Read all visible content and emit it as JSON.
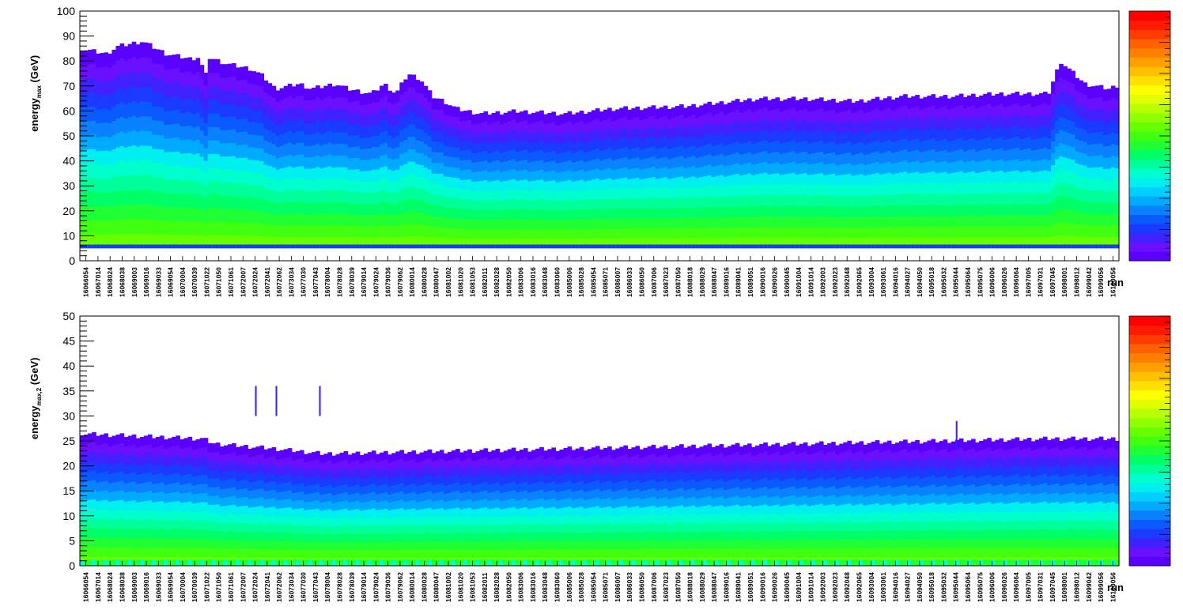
{
  "palette": [
    "#5a00ff",
    "#6a10ff",
    "#4020ff",
    "#1a3aff",
    "#0a5aff",
    "#0a82ff",
    "#00aaff",
    "#00cfff",
    "#00f0f0",
    "#00ffcc",
    "#00ff99",
    "#00ff66",
    "#20ff33",
    "#40ff10",
    "#66ff00",
    "#90ff00",
    "#b8ff00",
    "#e0ff00",
    "#ffff00",
    "#ffe000",
    "#ffc000",
    "#ffa000",
    "#ff8000",
    "#ff6000",
    "#ff3c00",
    "#ff1a00",
    "#ff0000"
  ],
  "chart_data": [
    {
      "type": "heatmap",
      "xlabel": "run",
      "ylabel": "energy",
      "ylabel_sub": "max",
      "ylabel_unit": " (GeV)",
      "ylim": [
        0,
        100
      ],
      "yticks": [
        "0",
        "10",
        "20",
        "30",
        "40",
        "50",
        "60",
        "70",
        "80",
        "90",
        "100"
      ],
      "x_tick_labels": [
        "16066054",
        "16067014",
        "16068024",
        "16068038",
        "16069003",
        "16069016",
        "16069033",
        "16069054",
        "16070004",
        "16070039",
        "16071022",
        "16071050",
        "16071061",
        "16072007",
        "16072024",
        "16072041",
        "16072062",
        "16073034",
        "16077030",
        "16077043",
        "16078004",
        "16078028",
        "16078039",
        "16079014",
        "16079024",
        "16079036",
        "16079062",
        "16080014",
        "16080028",
        "16080047",
        "16081002",
        "16081020",
        "16081053",
        "16082011",
        "16082028",
        "16082050",
        "16083006",
        "16083016",
        "16083048",
        "16083060",
        "16085006",
        "16085028",
        "16085054",
        "16085071",
        "16086007",
        "16086033",
        "16086050",
        "16087006",
        "16087023",
        "16087050",
        "16088018",
        "16088029",
        "16088047",
        "16089016",
        "16089041",
        "16089051",
        "16090016",
        "16090026",
        "16090045",
        "16091004",
        "16091014",
        "16092003",
        "16092023",
        "16092048",
        "16092065",
        "16093004",
        "16093061",
        "16094016",
        "16094027",
        "16094050",
        "16095018",
        "16095032",
        "16095044",
        "16095064",
        "16095075",
        "16096006",
        "16096026",
        "16096064",
        "16097005",
        "16097031",
        "16097045",
        "16098001",
        "16098012",
        "16099042",
        "16099056",
        "16100056"
      ],
      "upper_envelope_knots": [
        [
          0,
          84
        ],
        [
          2,
          82
        ],
        [
          3,
          85
        ],
        [
          5,
          87
        ],
        [
          7,
          82
        ],
        [
          9,
          80
        ],
        [
          9.9,
          81
        ],
        [
          10.1,
          49
        ],
        [
          10.3,
          81
        ],
        [
          12,
          78
        ],
        [
          14,
          76
        ],
        [
          15,
          73
        ],
        [
          16,
          68
        ],
        [
          18,
          70
        ],
        [
          19,
          68
        ],
        [
          21,
          70
        ],
        [
          22,
          68
        ],
        [
          24,
          66
        ],
        [
          25,
          70
        ],
        [
          26,
          66
        ],
        [
          27,
          74
        ],
        [
          28,
          72
        ],
        [
          29,
          65
        ],
        [
          30,
          63
        ],
        [
          31,
          60
        ],
        [
          33,
          58
        ],
        [
          36,
          59
        ],
        [
          40,
          58
        ],
        [
          44,
          60
        ],
        [
          50,
          61
        ],
        [
          56,
          64
        ],
        [
          60,
          64
        ],
        [
          64,
          63
        ],
        [
          68,
          65
        ],
        [
          72,
          65
        ],
        [
          76,
          66
        ],
        [
          80,
          66
        ],
        [
          81,
          79
        ],
        [
          83,
          70
        ],
        [
          85,
          68
        ],
        [
          86,
          70
        ]
      ],
      "lower_edge_gev": 5
    },
    {
      "type": "heatmap",
      "xlabel": "run",
      "ylabel": "energy",
      "ylabel_sub": "max,2",
      "ylabel_unit": " (GeV)",
      "ylim": [
        0,
        50
      ],
      "yticks": [
        "0",
        "5",
        "10",
        "15",
        "20",
        "25",
        "30",
        "35",
        "40",
        "45",
        "50"
      ],
      "x_tick_labels": [
        "16066054",
        "16067014",
        "16068024",
        "16068038",
        "16069003",
        "16069016",
        "16069033",
        "16069054",
        "16070004",
        "16070039",
        "16071022",
        "16071050",
        "16071061",
        "16072007",
        "16072024",
        "16072041",
        "16072062",
        "16073034",
        "16077030",
        "16077043",
        "16078004",
        "16078028",
        "16078039",
        "16079014",
        "16079024",
        "16079036",
        "16079062",
        "16080014",
        "16080028",
        "16080047",
        "16081002",
        "16081020",
        "16081053",
        "16082011",
        "16082028",
        "16082050",
        "16083006",
        "16083016",
        "16083048",
        "16083060",
        "16085006",
        "16085028",
        "16085054",
        "16085071",
        "16086007",
        "16086033",
        "16086050",
        "16087006",
        "16087023",
        "16087050",
        "16088018",
        "16088029",
        "16088047",
        "16089016",
        "16089041",
        "16089051",
        "16090016",
        "16090026",
        "16090045",
        "16091004",
        "16091014",
        "16092003",
        "16092023",
        "16092048",
        "16092065",
        "16093004",
        "16093061",
        "16094016",
        "16094027",
        "16094050",
        "16095018",
        "16095032",
        "16095044",
        "16095064",
        "16095075",
        "16096006",
        "16096026",
        "16096064",
        "16097005",
        "16097031",
        "16097045",
        "16098001",
        "16098012",
        "16099042",
        "16099056",
        "16100056"
      ],
      "upper_envelope_knots": [
        [
          0,
          26
        ],
        [
          10,
          25
        ],
        [
          11,
          24
        ],
        [
          16,
          23
        ],
        [
          20,
          22
        ],
        [
          40,
          23
        ],
        [
          60,
          24
        ],
        [
          80,
          25
        ],
        [
          86,
          25
        ]
      ],
      "outlier_spikes": [
        [
          14.5,
          36
        ],
        [
          16.2,
          36
        ],
        [
          19.8,
          36
        ],
        [
          72.5,
          29
        ]
      ],
      "lower_edge_gev": 0
    }
  ]
}
